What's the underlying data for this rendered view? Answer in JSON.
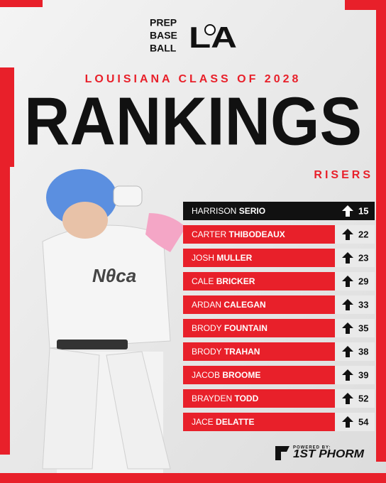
{
  "header": {
    "logo_lines": [
      "PREP",
      "BASE",
      "BALL"
    ],
    "logo_mark": "LA",
    "subtitle": "LOUISIANA CLASS OF 2028",
    "title": "RANKINGS",
    "section": "RISERS"
  },
  "table": {
    "rows": [
      {
        "first": "HARRISON",
        "last": "SERIO",
        "rank": "15"
      },
      {
        "first": "CARTER",
        "last": "THIBODEAUX",
        "rank": "22"
      },
      {
        "first": "JOSH",
        "last": "MULLER",
        "rank": "23"
      },
      {
        "first": "CALE",
        "last": "BRICKER",
        "rank": "29"
      },
      {
        "first": "ARDAN",
        "last": "CALEGAN",
        "rank": "33"
      },
      {
        "first": "BRODY",
        "last": "FOUNTAIN",
        "rank": "35"
      },
      {
        "first": "BRODY",
        "last": "TRAHAN",
        "rank": "38"
      },
      {
        "first": "JACOB",
        "last": "BROOME",
        "rank": "39"
      },
      {
        "first": "BRAYDEN",
        "last": "TODD",
        "rank": "52"
      },
      {
        "first": "JACE",
        "last": "DELATTE",
        "rank": "54"
      }
    ]
  },
  "footer": {
    "powered": "POWERED BY:",
    "sponsor": "1ST PHORM"
  }
}
